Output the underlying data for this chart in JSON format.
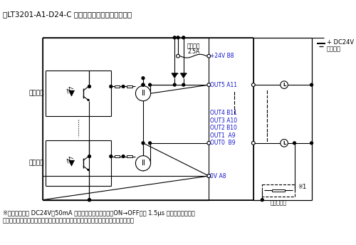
{
  "title": "・LT3201-A1-D24-C 出力部回路（ソースタイプ）",
  "note1": "※１（例）出力 DC24V、50mA 時では、出力遅延時間（ON→OFF）は 1.5μs です。応答性を必",
  "note2": "要とし、負荷が軽い場合は、外部にダミー抵抷を設けて電流を増やしてください。",
  "label_naibu": "内部回路",
  "label_fuse": "ヒューズ",
  "label_fuse2": "2.5A",
  "label_p24v": "+24V B8",
  "label_out5": "OUT5 A11",
  "label_out4": "OUT4 B11",
  "label_out3": "OUT3 A10",
  "label_out2": "OUT2 B10",
  "label_out1": "OUT1  A9",
  "label_out0": "OUT0  B9",
  "label_0v": "0V A8",
  "label_dc24v": "+ DC24V",
  "label_gaibuden": "外部電源",
  "label_dummy": "ダミー抗抗",
  "label_note1": "※1",
  "bg": "#ffffff",
  "lc": "#000000",
  "bc": "#1515cc"
}
